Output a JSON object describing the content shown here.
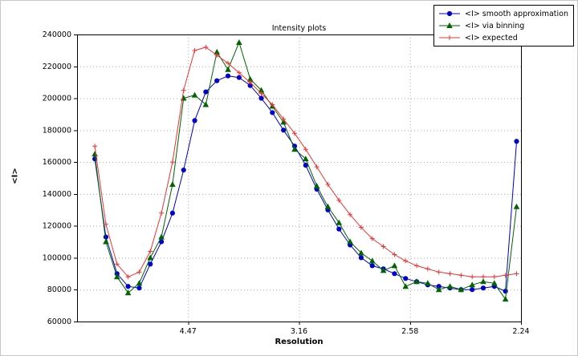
{
  "chart_data": {
    "type": "line",
    "title": "Intensity plots",
    "xlabel": "Resolution",
    "ylabel": "<I>",
    "grid": true,
    "legend_position": "upper right",
    "x_axis": {
      "min": 0.0,
      "max": 0.2,
      "ticks": [
        {
          "value": 0.05,
          "label": "4.47"
        },
        {
          "value": 0.1,
          "label": "3.16"
        },
        {
          "value": 0.15,
          "label": "2.58"
        },
        {
          "value": 0.2,
          "label": "2.24"
        }
      ]
    },
    "y_axis": {
      "min": 60000,
      "max": 240000,
      "ticks": [
        60000,
        80000,
        100000,
        120000,
        140000,
        160000,
        180000,
        200000,
        220000,
        240000
      ]
    },
    "x": [
      0.008,
      0.013,
      0.018,
      0.023,
      0.028,
      0.033,
      0.038,
      0.043,
      0.048,
      0.053,
      0.058,
      0.063,
      0.068,
      0.073,
      0.078,
      0.083,
      0.088,
      0.093,
      0.098,
      0.103,
      0.108,
      0.113,
      0.118,
      0.123,
      0.128,
      0.133,
      0.138,
      0.143,
      0.148,
      0.153,
      0.158,
      0.163,
      0.168,
      0.173,
      0.178,
      0.183,
      0.188,
      0.193,
      0.198
    ],
    "series": [
      {
        "name": "<I> smooth approximation",
        "color": "#0000cc",
        "marker": "circle",
        "values": [
          162000,
          113000,
          90000,
          82000,
          81000,
          96000,
          110000,
          128000,
          155000,
          186000,
          204000,
          211000,
          214000,
          213000,
          208000,
          200000,
          191000,
          180000,
          170000,
          158000,
          143000,
          130000,
          118000,
          108000,
          100000,
          95000,
          93000,
          90000,
          87000,
          85000,
          83000,
          82000,
          81000,
          80000,
          80000,
          81000,
          82000,
          79000,
          173000
        ]
      },
      {
        "name": "<I> via binning",
        "color": "#006400",
        "marker": "triangle",
        "values": [
          165000,
          110000,
          88000,
          78000,
          84000,
          100000,
          113000,
          146000,
          200000,
          202000,
          196000,
          229000,
          218000,
          235000,
          212000,
          205000,
          195000,
          185000,
          168000,
          162000,
          145000,
          132000,
          122000,
          110000,
          103000,
          98000,
          92000,
          95000,
          82000,
          85000,
          84000,
          80000,
          82000,
          80000,
          83000,
          85000,
          84000,
          74000,
          132000
        ]
      },
      {
        "name": "<I> expected",
        "color": "#ee3333",
        "marker": "plus",
        "values": [
          170000,
          121000,
          96000,
          88000,
          91000,
          104000,
          128000,
          160000,
          205000,
          230000,
          232000,
          227000,
          222000,
          216000,
          210000,
          203000,
          196000,
          187000,
          178000,
          168000,
          157000,
          146000,
          136000,
          127000,
          119000,
          112000,
          107000,
          102000,
          98000,
          95000,
          93000,
          91000,
          90000,
          89000,
          88000,
          88000,
          88000,
          89000,
          90000
        ]
      }
    ]
  },
  "style": {
    "grid_color": "#aaaaaa",
    "axis_color": "#000000",
    "background": "#ffffff"
  }
}
